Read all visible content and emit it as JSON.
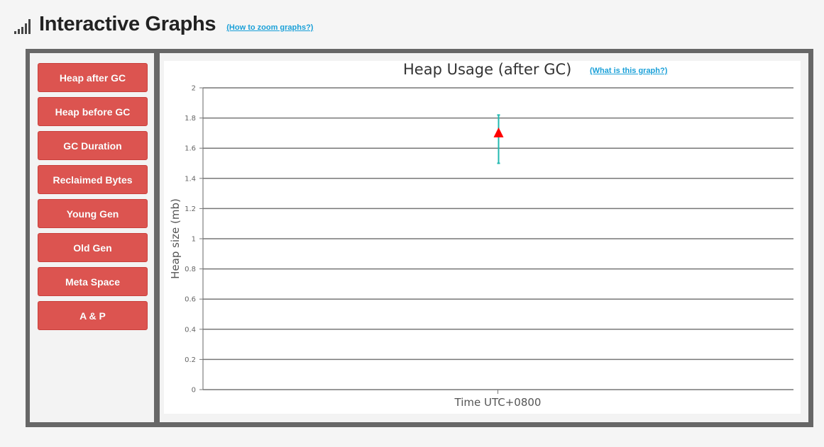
{
  "header": {
    "icon": "signal-bars-icon",
    "title": "Interactive Graphs",
    "help_link": "(How to zoom graphs?)"
  },
  "sidebar": {
    "items": [
      {
        "label": "Heap after GC"
      },
      {
        "label": "Heap before GC"
      },
      {
        "label": "GC Duration"
      },
      {
        "label": "Reclaimed Bytes"
      },
      {
        "label": "Young Gen"
      },
      {
        "label": "Old Gen"
      },
      {
        "label": "Meta Space"
      },
      {
        "label": "A & P"
      }
    ],
    "button_color": "#dc5450"
  },
  "chart": {
    "title": "Heap Usage (after GC)",
    "help_link": "(What is this graph?)"
  },
  "chart_data": {
    "type": "scatter",
    "title": "Heap Usage (after GC)",
    "xlabel": "Time UTC+0800",
    "ylabel": "Heap size (mb)",
    "ylim": [
      0,
      2
    ],
    "yticks": [
      "0",
      "0.2",
      "0.4",
      "0.6",
      "0.8",
      "1",
      "1.2",
      "1.4",
      "1.6",
      "1.8",
      "2"
    ],
    "grid": true,
    "series": [
      {
        "points": [
          {
            "y": 1.7,
            "y_low": 1.5,
            "y_high": 1.82
          }
        ],
        "marker": "triangle",
        "marker_color": "#ff0000",
        "errorbar_color": "#22b8b0"
      }
    ]
  }
}
